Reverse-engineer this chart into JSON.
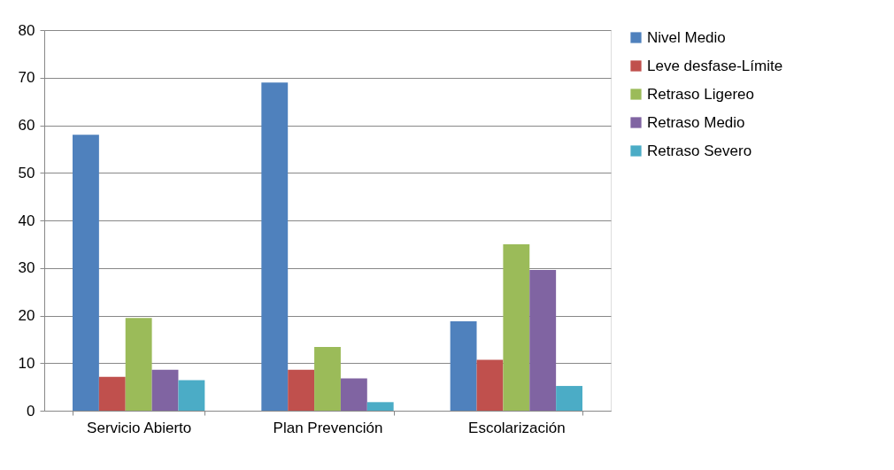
{
  "chart_data": {
    "type": "bar",
    "categories": [
      "Servicio Abierto",
      "Plan Prevención",
      "Escolarización"
    ],
    "series": [
      {
        "name": "Nivel Medio",
        "color": "#4f81bd",
        "values": [
          58.0,
          69.0,
          18.8
        ]
      },
      {
        "name": "Leve desfase-Límite",
        "color": "#c0504d",
        "values": [
          7.1,
          8.6,
          10.7
        ]
      },
      {
        "name": "Retraso Ligereo",
        "color": "#9bbb59",
        "values": [
          19.5,
          13.4,
          35.0
        ]
      },
      {
        "name": "Retraso Medio",
        "color": "#8064a2",
        "values": [
          8.6,
          6.8,
          29.6
        ]
      },
      {
        "name": "Retraso Severo",
        "color": "#4bacc6",
        "values": [
          6.4,
          1.8,
          5.2
        ]
      }
    ],
    "ylim": [
      0,
      80
    ],
    "yticks": [
      0,
      10,
      20,
      30,
      40,
      50,
      60,
      70,
      80
    ],
    "grid": "y",
    "legend": "right"
  }
}
